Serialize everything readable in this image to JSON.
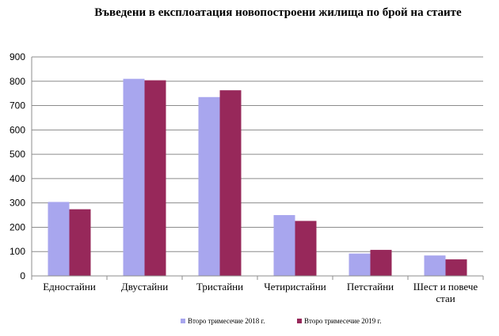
{
  "chart_data": {
    "type": "bar",
    "title": "Въведени в експлоатация новопостроени жилища по брой на стаите",
    "categories": [
      [
        "Едностайни"
      ],
      [
        "Двустайни"
      ],
      [
        "Тристайни"
      ],
      [
        "Четиристайни"
      ],
      [
        "Петстайни"
      ],
      [
        "Шест и повече",
        "стаи"
      ]
    ],
    "series": [
      {
        "name": "Второ тримесечие 2018 г.",
        "color": "#a8a6ee",
        "values": [
          304,
          810,
          735,
          250,
          92,
          84
        ]
      },
      {
        "name": "Второ тримесечие 2019 г.",
        "color": "#97285a",
        "values": [
          274,
          804,
          763,
          226,
          107,
          68
        ]
      }
    ],
    "ylim": [
      0,
      900
    ],
    "yticks": [
      0,
      100,
      200,
      300,
      400,
      500,
      600,
      700,
      800,
      900
    ],
    "grid": true,
    "legend_position": "bottom"
  }
}
